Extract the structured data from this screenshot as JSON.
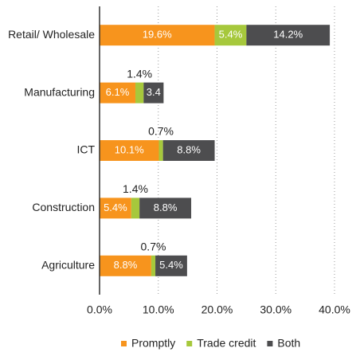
{
  "chart_data": {
    "type": "bar",
    "orientation": "horizontal",
    "stacked": true,
    "categories": [
      "Retail/ Wholesale",
      "Manufacturing",
      "ICT",
      "Construction",
      "Agriculture"
    ],
    "series": [
      {
        "name": "Promptly",
        "color": "#f7941d",
        "values": [
          19.6,
          6.1,
          10.1,
          5.4,
          8.8
        ],
        "value_labels": [
          "19.6%",
          "6.1%",
          "10.1%",
          "5.4%",
          "8.8%"
        ]
      },
      {
        "name": "Trade credit",
        "color": "#a6c83c",
        "values": [
          5.4,
          1.4,
          0.7,
          1.4,
          0.7
        ],
        "value_labels": [
          "5.4%",
          "1.4%",
          "0.7%",
          "1.4%",
          "0.7%"
        ]
      },
      {
        "name": "Both",
        "color": "#4d4d4f",
        "values": [
          14.2,
          3.4,
          8.8,
          8.8,
          5.4
        ],
        "value_labels": [
          "14.2%",
          "3.4",
          "8.8%",
          "8.8%",
          "5.4%"
        ]
      }
    ],
    "xlim": [
      0,
      40
    ],
    "xticks": [
      {
        "value": 0,
        "label": "0.0%"
      },
      {
        "value": 10,
        "label": "10.0%"
      },
      {
        "value": 20,
        "label": "20.0%"
      },
      {
        "value": 30,
        "label": "30.0%"
      },
      {
        "value": 40,
        "label": "40.0%"
      }
    ],
    "grid": true,
    "legend": "bottom"
  }
}
